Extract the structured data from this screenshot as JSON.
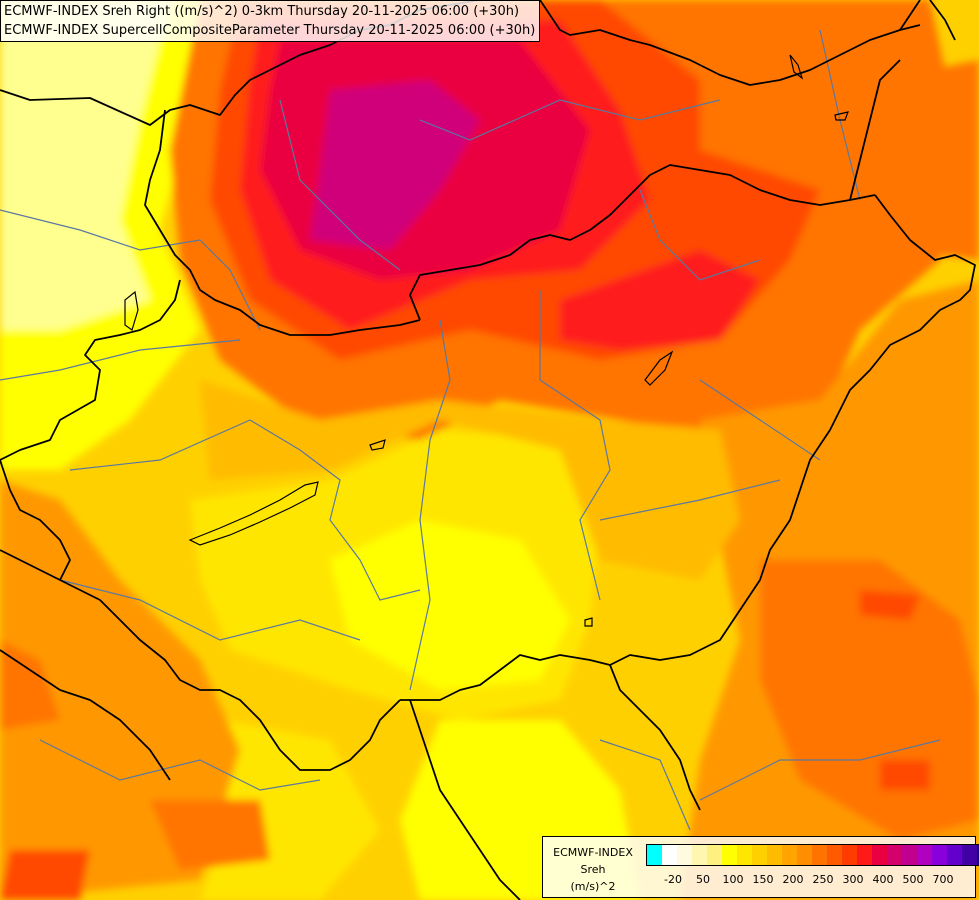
{
  "titles": {
    "line1": "ECMWF-INDEX Sreh Right ((m/s)^2) 0-3km Thursday 20-11-2025 06:00 (+30h)",
    "line2": "ECMWF-INDEX SupercellCompositeParameter Thursday 20-11-2025 06:00 (+30h)"
  },
  "legend": {
    "line1": "ECMWF-INDEX",
    "line2": "Sreh",
    "line3": "(m/s)^2",
    "colors": [
      "#00ffff",
      "#ffffff",
      "#fffbe0",
      "#fff7b0",
      "#fff080",
      "#ffff00",
      "#ffe600",
      "#ffd000",
      "#ffbb00",
      "#ffa400",
      "#ff8e00",
      "#ff7400",
      "#ff5a00",
      "#ff3c00",
      "#ff1a1a",
      "#ea0040",
      "#d4006c",
      "#c20090",
      "#b000c0",
      "#8a00dd",
      "#6400cc",
      "#4000a6",
      "#200080"
    ],
    "ticks": [
      "-20",
      "50",
      "100",
      "150",
      "200",
      "250",
      "300",
      "400",
      "500",
      "700"
    ]
  },
  "palette": {
    "base": "#ffd000",
    "pale_yellow": "#ffff90",
    "yellow": "#ffff00",
    "yellow_orange": "#ffe600",
    "orange_light": "#ffbb00",
    "orange": "#ff9800",
    "orange_dark": "#ff7400",
    "red_orange": "#ff4a00",
    "red": "#ff1a1a",
    "crimson": "#ea0040",
    "magenta": "#d0007a",
    "border": "#000000",
    "region": "#5a78a0"
  }
}
